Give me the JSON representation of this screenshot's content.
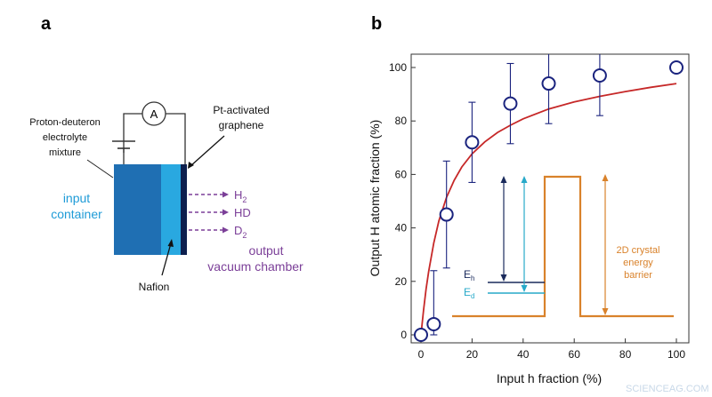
{
  "panel_a": {
    "label": "a",
    "ammeter": "A",
    "electrolyte_line1": "Proton-deuteron",
    "electrolyte_line2": "electrolyte",
    "electrolyte_line3": "mixture",
    "graphene_line1": "Pt-activated",
    "graphene_line2": "graphene",
    "input_line1": "input",
    "input_line2": "container",
    "output_line1": "output",
    "output_line2": "vacuum chamber",
    "gas_h2_base": "H",
    "gas_h2_sub": "2",
    "gas_hd": "HD",
    "gas_d2_base": "D",
    "gas_d2_sub": "2",
    "membrane": "Nafion",
    "colors": {
      "container_dark": "#1f6fb3",
      "container_light": "#29a8e0",
      "graphene": "#0d1f4e",
      "input_text": "#1e9bd7",
      "output_text": "#7b3f98",
      "arrows": "#7b3f98"
    }
  },
  "panel_b": {
    "label": "b",
    "watermark": "SCIENCEAG.COM",
    "inset": {
      "eh_base": "E",
      "eh_sub": "h",
      "ed_base": "E",
      "ed_sub": "d",
      "barrier_line1": "2D crystal",
      "barrier_line2": "energy",
      "barrier_line3": "barrier",
      "colors": {
        "barrier": "#d9822b",
        "eh": "#1a2a5c",
        "ed": "#27a9c9"
      }
    }
  },
  "chart_data": {
    "type": "scatter",
    "xlabel": "Input h fraction (%)",
    "ylabel": "Output H atomic fraction (%)",
    "xlim": [
      0,
      100
    ],
    "ylim": [
      0,
      100
    ],
    "xticks": [
      "0",
      "20",
      "40",
      "60",
      "80",
      "100"
    ],
    "yticks": [
      "0",
      "20",
      "40",
      "60",
      "80",
      "100"
    ],
    "grid": false,
    "series": [
      {
        "points": [
          {
            "x": 0,
            "y": 0,
            "err": 0
          },
          {
            "x": 5,
            "y": 4,
            "err": 20
          },
          {
            "x": 10,
            "y": 45,
            "err": 20
          },
          {
            "x": 20,
            "y": 72,
            "err": 15
          },
          {
            "x": 35,
            "y": 86.5,
            "err": 15
          },
          {
            "x": 50,
            "y": 94,
            "err": 15
          },
          {
            "x": 70,
            "y": 97,
            "err": 15
          },
          {
            "x": 100,
            "y": 100,
            "err": 0
          }
        ],
        "marker_color": "#1a237e"
      }
    ],
    "fit_curve": {
      "x": [
        0,
        1,
        2,
        3,
        5,
        7,
        10,
        13,
        16,
        20,
        25,
        30,
        35,
        40,
        50,
        60,
        70,
        80,
        90,
        100
      ],
      "y": [
        0,
        9.2,
        17.0,
        23.6,
        34.4,
        42.6,
        51.4,
        57.8,
        62.8,
        67.7,
        72.2,
        75.7,
        78.4,
        80.8,
        84.5,
        87.1,
        89.2,
        91.0,
        92.6,
        94.0
      ],
      "color": "#c62828"
    }
  }
}
